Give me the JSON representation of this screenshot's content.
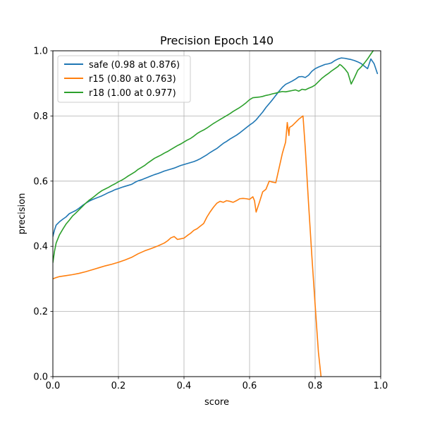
{
  "chart_data": {
    "type": "line",
    "title": "Precision Epoch 140",
    "xlabel": "score",
    "ylabel": "precision",
    "xlim": [
      0,
      1
    ],
    "ylim": [
      0,
      1
    ],
    "xticks": [
      "0.0",
      "0.2",
      "0.4",
      "0.6",
      "0.8",
      "1.0"
    ],
    "yticks": [
      "0.0",
      "0.2",
      "0.4",
      "0.6",
      "0.8",
      "1.0"
    ],
    "grid": true,
    "legend_position": "upper-left",
    "series": [
      {
        "name": "safe (0.98 at 0.876)",
        "color": "#1f77b4",
        "points": [
          [
            0.0,
            0.43
          ],
          [
            0.005,
            0.45
          ],
          [
            0.01,
            0.465
          ],
          [
            0.02,
            0.475
          ],
          [
            0.03,
            0.483
          ],
          [
            0.04,
            0.49
          ],
          [
            0.05,
            0.5
          ],
          [
            0.06,
            0.505
          ],
          [
            0.07,
            0.51
          ],
          [
            0.08,
            0.517
          ],
          [
            0.09,
            0.525
          ],
          [
            0.1,
            0.532
          ],
          [
            0.11,
            0.538
          ],
          [
            0.12,
            0.543
          ],
          [
            0.13,
            0.547
          ],
          [
            0.14,
            0.551
          ],
          [
            0.15,
            0.555
          ],
          [
            0.16,
            0.56
          ],
          [
            0.17,
            0.565
          ],
          [
            0.18,
            0.569
          ],
          [
            0.19,
            0.574
          ],
          [
            0.2,
            0.577
          ],
          [
            0.21,
            0.581
          ],
          [
            0.22,
            0.584
          ],
          [
            0.23,
            0.587
          ],
          [
            0.24,
            0.59
          ],
          [
            0.25,
            0.596
          ],
          [
            0.26,
            0.601
          ],
          [
            0.27,
            0.604
          ],
          [
            0.28,
            0.608
          ],
          [
            0.29,
            0.612
          ],
          [
            0.3,
            0.616
          ],
          [
            0.31,
            0.62
          ],
          [
            0.32,
            0.623
          ],
          [
            0.33,
            0.627
          ],
          [
            0.34,
            0.631
          ],
          [
            0.35,
            0.634
          ],
          [
            0.36,
            0.637
          ],
          [
            0.37,
            0.64
          ],
          [
            0.38,
            0.644
          ],
          [
            0.39,
            0.648
          ],
          [
            0.4,
            0.651
          ],
          [
            0.41,
            0.654
          ],
          [
            0.42,
            0.657
          ],
          [
            0.43,
            0.66
          ],
          [
            0.44,
            0.664
          ],
          [
            0.45,
            0.669
          ],
          [
            0.46,
            0.675
          ],
          [
            0.47,
            0.681
          ],
          [
            0.48,
            0.688
          ],
          [
            0.49,
            0.694
          ],
          [
            0.5,
            0.7
          ],
          [
            0.51,
            0.708
          ],
          [
            0.52,
            0.716
          ],
          [
            0.53,
            0.722
          ],
          [
            0.54,
            0.729
          ],
          [
            0.55,
            0.735
          ],
          [
            0.56,
            0.741
          ],
          [
            0.57,
            0.748
          ],
          [
            0.58,
            0.756
          ],
          [
            0.59,
            0.764
          ],
          [
            0.6,
            0.772
          ],
          [
            0.61,
            0.779
          ],
          [
            0.62,
            0.788
          ],
          [
            0.63,
            0.8
          ],
          [
            0.64,
            0.812
          ],
          [
            0.65,
            0.826
          ],
          [
            0.66,
            0.838
          ],
          [
            0.67,
            0.85
          ],
          [
            0.68,
            0.863
          ],
          [
            0.69,
            0.876
          ],
          [
            0.7,
            0.888
          ],
          [
            0.71,
            0.897
          ],
          [
            0.72,
            0.902
          ],
          [
            0.73,
            0.907
          ],
          [
            0.74,
            0.913
          ],
          [
            0.75,
            0.92
          ],
          [
            0.76,
            0.921
          ],
          [
            0.77,
            0.918
          ],
          [
            0.78,
            0.925
          ],
          [
            0.79,
            0.937
          ],
          [
            0.8,
            0.945
          ],
          [
            0.81,
            0.95
          ],
          [
            0.82,
            0.954
          ],
          [
            0.83,
            0.958
          ],
          [
            0.84,
            0.96
          ],
          [
            0.85,
            0.963
          ],
          [
            0.86,
            0.97
          ],
          [
            0.87,
            0.975
          ],
          [
            0.88,
            0.978
          ],
          [
            0.89,
            0.977
          ],
          [
            0.9,
            0.975
          ],
          [
            0.91,
            0.973
          ],
          [
            0.92,
            0.97
          ],
          [
            0.93,
            0.966
          ],
          [
            0.94,
            0.961
          ],
          [
            0.95,
            0.953
          ],
          [
            0.96,
            0.945
          ],
          [
            0.97,
            0.975
          ],
          [
            0.98,
            0.96
          ],
          [
            0.99,
            0.93
          ]
        ]
      },
      {
        "name": "r15 (0.80 at 0.763)",
        "color": "#ff7f0e",
        "points": [
          [
            0.0,
            0.3
          ],
          [
            0.01,
            0.304
          ],
          [
            0.02,
            0.307
          ],
          [
            0.04,
            0.31
          ],
          [
            0.06,
            0.313
          ],
          [
            0.08,
            0.317
          ],
          [
            0.1,
            0.322
          ],
          [
            0.12,
            0.328
          ],
          [
            0.14,
            0.334
          ],
          [
            0.16,
            0.34
          ],
          [
            0.18,
            0.345
          ],
          [
            0.2,
            0.351
          ],
          [
            0.22,
            0.358
          ],
          [
            0.24,
            0.366
          ],
          [
            0.26,
            0.377
          ],
          [
            0.28,
            0.386
          ],
          [
            0.3,
            0.393
          ],
          [
            0.32,
            0.401
          ],
          [
            0.34,
            0.41
          ],
          [
            0.35,
            0.417
          ],
          [
            0.36,
            0.426
          ],
          [
            0.37,
            0.43
          ],
          [
            0.38,
            0.421
          ],
          [
            0.39,
            0.423
          ],
          [
            0.4,
            0.425
          ],
          [
            0.41,
            0.433
          ],
          [
            0.42,
            0.44
          ],
          [
            0.43,
            0.449
          ],
          [
            0.44,
            0.454
          ],
          [
            0.45,
            0.462
          ],
          [
            0.46,
            0.47
          ],
          [
            0.47,
            0.49
          ],
          [
            0.48,
            0.506
          ],
          [
            0.49,
            0.52
          ],
          [
            0.5,
            0.532
          ],
          [
            0.51,
            0.538
          ],
          [
            0.52,
            0.535
          ],
          [
            0.53,
            0.54
          ],
          [
            0.54,
            0.538
          ],
          [
            0.55,
            0.535
          ],
          [
            0.56,
            0.54
          ],
          [
            0.57,
            0.546
          ],
          [
            0.58,
            0.547
          ],
          [
            0.59,
            0.546
          ],
          [
            0.6,
            0.544
          ],
          [
            0.61,
            0.552
          ],
          [
            0.615,
            0.54
          ],
          [
            0.62,
            0.505
          ],
          [
            0.63,
            0.535
          ],
          [
            0.64,
            0.567
          ],
          [
            0.65,
            0.575
          ],
          [
            0.66,
            0.6
          ],
          [
            0.67,
            0.597
          ],
          [
            0.68,
            0.595
          ],
          [
            0.69,
            0.64
          ],
          [
            0.7,
            0.685
          ],
          [
            0.71,
            0.72
          ],
          [
            0.715,
            0.78
          ],
          [
            0.72,
            0.74
          ],
          [
            0.722,
            0.765
          ],
          [
            0.73,
            0.77
          ],
          [
            0.74,
            0.78
          ],
          [
            0.75,
            0.79
          ],
          [
            0.763,
            0.8
          ],
          [
            0.77,
            0.7
          ],
          [
            0.78,
            0.53
          ],
          [
            0.79,
            0.37
          ],
          [
            0.8,
            0.22
          ],
          [
            0.81,
            0.075
          ],
          [
            0.818,
            0.0
          ]
        ]
      },
      {
        "name": "r18 (1.00 at 0.977)",
        "color": "#2ca02c",
        "points": [
          [
            0.0,
            0.35
          ],
          [
            0.005,
            0.385
          ],
          [
            0.01,
            0.41
          ],
          [
            0.02,
            0.435
          ],
          [
            0.03,
            0.452
          ],
          [
            0.04,
            0.468
          ],
          [
            0.05,
            0.48
          ],
          [
            0.06,
            0.493
          ],
          [
            0.07,
            0.502
          ],
          [
            0.08,
            0.512
          ],
          [
            0.09,
            0.522
          ],
          [
            0.1,
            0.532
          ],
          [
            0.11,
            0.541
          ],
          [
            0.12,
            0.548
          ],
          [
            0.13,
            0.556
          ],
          [
            0.14,
            0.564
          ],
          [
            0.15,
            0.571
          ],
          [
            0.16,
            0.576
          ],
          [
            0.17,
            0.581
          ],
          [
            0.18,
            0.587
          ],
          [
            0.19,
            0.592
          ],
          [
            0.2,
            0.598
          ],
          [
            0.21,
            0.603
          ],
          [
            0.22,
            0.609
          ],
          [
            0.23,
            0.616
          ],
          [
            0.24,
            0.622
          ],
          [
            0.25,
            0.628
          ],
          [
            0.26,
            0.636
          ],
          [
            0.27,
            0.642
          ],
          [
            0.28,
            0.648
          ],
          [
            0.29,
            0.656
          ],
          [
            0.3,
            0.663
          ],
          [
            0.31,
            0.67
          ],
          [
            0.32,
            0.675
          ],
          [
            0.33,
            0.68
          ],
          [
            0.34,
            0.686
          ],
          [
            0.35,
            0.691
          ],
          [
            0.36,
            0.697
          ],
          [
            0.37,
            0.703
          ],
          [
            0.38,
            0.709
          ],
          [
            0.39,
            0.714
          ],
          [
            0.4,
            0.72
          ],
          [
            0.41,
            0.726
          ],
          [
            0.42,
            0.731
          ],
          [
            0.43,
            0.738
          ],
          [
            0.44,
            0.746
          ],
          [
            0.45,
            0.752
          ],
          [
            0.46,
            0.757
          ],
          [
            0.47,
            0.763
          ],
          [
            0.48,
            0.77
          ],
          [
            0.49,
            0.777
          ],
          [
            0.5,
            0.783
          ],
          [
            0.51,
            0.789
          ],
          [
            0.52,
            0.795
          ],
          [
            0.53,
            0.801
          ],
          [
            0.54,
            0.807
          ],
          [
            0.55,
            0.814
          ],
          [
            0.56,
            0.82
          ],
          [
            0.57,
            0.826
          ],
          [
            0.58,
            0.833
          ],
          [
            0.59,
            0.841
          ],
          [
            0.6,
            0.85
          ],
          [
            0.61,
            0.856
          ],
          [
            0.62,
            0.857
          ],
          [
            0.63,
            0.858
          ],
          [
            0.64,
            0.86
          ],
          [
            0.65,
            0.863
          ],
          [
            0.66,
            0.865
          ],
          [
            0.67,
            0.868
          ],
          [
            0.68,
            0.87
          ],
          [
            0.69,
            0.873
          ],
          [
            0.7,
            0.875
          ],
          [
            0.71,
            0.874
          ],
          [
            0.72,
            0.876
          ],
          [
            0.73,
            0.878
          ],
          [
            0.74,
            0.88
          ],
          [
            0.75,
            0.876
          ],
          [
            0.76,
            0.882
          ],
          [
            0.77,
            0.88
          ],
          [
            0.78,
            0.885
          ],
          [
            0.79,
            0.889
          ],
          [
            0.8,
            0.895
          ],
          [
            0.81,
            0.905
          ],
          [
            0.82,
            0.915
          ],
          [
            0.83,
            0.923
          ],
          [
            0.84,
            0.93
          ],
          [
            0.85,
            0.938
          ],
          [
            0.86,
            0.945
          ],
          [
            0.87,
            0.952
          ],
          [
            0.875,
            0.958
          ],
          [
            0.88,
            0.955
          ],
          [
            0.89,
            0.945
          ],
          [
            0.9,
            0.932
          ],
          [
            0.905,
            0.915
          ],
          [
            0.91,
            0.898
          ],
          [
            0.92,
            0.918
          ],
          [
            0.93,
            0.94
          ],
          [
            0.94,
            0.95
          ],
          [
            0.95,
            0.962
          ],
          [
            0.96,
            0.975
          ],
          [
            0.97,
            0.99
          ],
          [
            0.977,
            1.0
          ]
        ]
      }
    ]
  }
}
